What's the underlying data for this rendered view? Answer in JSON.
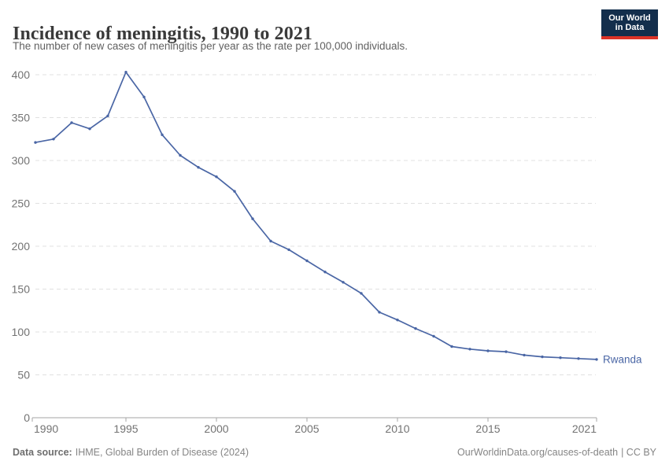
{
  "header": {
    "title": "Incidence of meningitis, 1990 to 2021",
    "subtitle": "The number of new cases of meningitis per year as the rate per 100,000 individuals.",
    "logo": {
      "line1": "Our World",
      "line2": "in Data",
      "bg_color": "#132e4c",
      "bar_color": "#dc3327"
    }
  },
  "chart_data": {
    "type": "line",
    "title": "Incidence of meningitis, 1990 to 2021",
    "xlabel": "",
    "ylabel": "",
    "x": [
      1990,
      1991,
      1992,
      1993,
      1994,
      1995,
      1996,
      1997,
      1998,
      1999,
      2000,
      2001,
      2002,
      2003,
      2004,
      2005,
      2006,
      2007,
      2008,
      2009,
      2010,
      2011,
      2012,
      2013,
      2014,
      2015,
      2016,
      2017,
      2018,
      2019,
      2020,
      2021
    ],
    "series": [
      {
        "name": "Rwanda",
        "color": "#4a66a5",
        "values": [
          321,
          325,
          344,
          337,
          352,
          403,
          374,
          330,
          306,
          292,
          281,
          264,
          232,
          206,
          196,
          183,
          170,
          158,
          145,
          123,
          114,
          104,
          95,
          83,
          80,
          78,
          77,
          73,
          71,
          70,
          69,
          68
        ]
      }
    ],
    "ylim": [
      0,
      400
    ],
    "yticks": [
      0,
      50,
      100,
      150,
      200,
      250,
      300,
      350,
      400
    ],
    "xticks": [
      1990,
      1995,
      2000,
      2005,
      2010,
      2015,
      2021
    ],
    "grid": "horizontal-dashed",
    "gridline_color": "#e0e0e0",
    "legend": "end-of-line-label",
    "marker": "dot"
  },
  "footer": {
    "source_label": "Data source:",
    "source_text": "IHME, Global Burden of Disease (2024)",
    "link": "OurWorldinData.org/causes-of-death",
    "license": "| CC BY"
  }
}
